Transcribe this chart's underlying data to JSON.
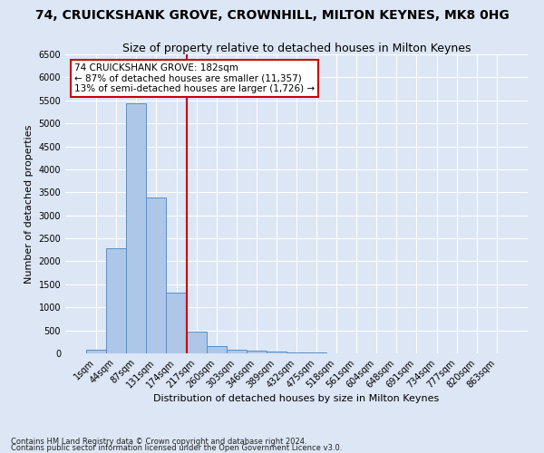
{
  "title": "74, CRUICKSHANK GROVE, CROWNHILL, MILTON KEYNES, MK8 0HG",
  "subtitle": "Size of property relative to detached houses in Milton Keynes",
  "xlabel": "Distribution of detached houses by size in Milton Keynes",
  "ylabel": "Number of detached properties",
  "footer1": "Contains HM Land Registry data © Crown copyright and database right 2024.",
  "footer2": "Contains public sector information licensed under the Open Government Licence v3.0.",
  "bar_labels": [
    "1sqm",
    "44sqm",
    "87sqm",
    "131sqm",
    "174sqm",
    "217sqm",
    "260sqm",
    "303sqm",
    "346sqm",
    "389sqm",
    "432sqm",
    "475sqm",
    "518sqm",
    "561sqm",
    "604sqm",
    "648sqm",
    "691sqm",
    "734sqm",
    "777sqm",
    "820sqm",
    "863sqm"
  ],
  "bar_values": [
    75,
    2280,
    5430,
    3390,
    1310,
    480,
    160,
    85,
    55,
    30,
    15,
    10,
    5,
    3,
    2,
    1,
    1,
    0,
    0,
    0,
    0
  ],
  "bar_color": "#aec6e8",
  "bar_edge_color": "#5a8fc2",
  "vline_index": 4,
  "vline_color": "#cc0000",
  "ylim": [
    0,
    6500
  ],
  "yticks": [
    0,
    500,
    1000,
    1500,
    2000,
    2500,
    3000,
    3500,
    4000,
    4500,
    5000,
    5500,
    6000,
    6500
  ],
  "annotation_title": "74 CRUICKSHANK GROVE: 182sqm",
  "annotation_line1": "← 87% of detached houses are smaller (11,357)",
  "annotation_line2": "13% of semi-detached houses are larger (1,726) →",
  "annotation_box_color": "#ffffff",
  "annotation_box_edge": "#cc0000",
  "background_color": "#dce6f5",
  "grid_color": "#ffffff",
  "title_fontsize": 10,
  "subtitle_fontsize": 9,
  "axis_fontsize": 8,
  "tick_fontsize": 7,
  "footer_fontsize": 6
}
